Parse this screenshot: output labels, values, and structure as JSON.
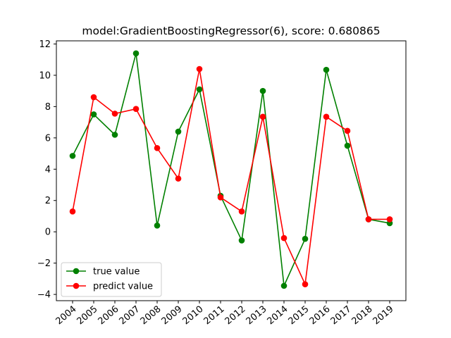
{
  "chart_data": {
    "type": "line",
    "title": "model:GradientBoostingRegressor(6), score: 0.680865",
    "xlabel": "",
    "ylabel": "",
    "categories": [
      "2004",
      "2005",
      "2006",
      "2007",
      "2008",
      "2009",
      "2010",
      "2011",
      "2012",
      "2013",
      "2014",
      "2015",
      "2016",
      "2017",
      "2018",
      "2019"
    ],
    "ylim": [
      -4.4,
      12.2
    ],
    "yticks": [
      -4,
      -2,
      0,
      2,
      4,
      6,
      8,
      10,
      12
    ],
    "grid": false,
    "legend_position": "lower-left",
    "series": [
      {
        "name": "true value",
        "color": "#008000",
        "values": [
          4.85,
          7.5,
          6.2,
          11.4,
          0.4,
          6.4,
          9.1,
          2.3,
          -0.55,
          9.0,
          -3.45,
          -0.45,
          10.35,
          5.5,
          0.8,
          0.55
        ]
      },
      {
        "name": "predict value",
        "color": "#ff0000",
        "values": [
          1.3,
          8.6,
          7.55,
          7.85,
          5.35,
          3.4,
          10.4,
          2.2,
          1.3,
          7.35,
          -0.4,
          -3.35,
          7.35,
          6.45,
          0.8,
          0.8
        ]
      }
    ]
  }
}
